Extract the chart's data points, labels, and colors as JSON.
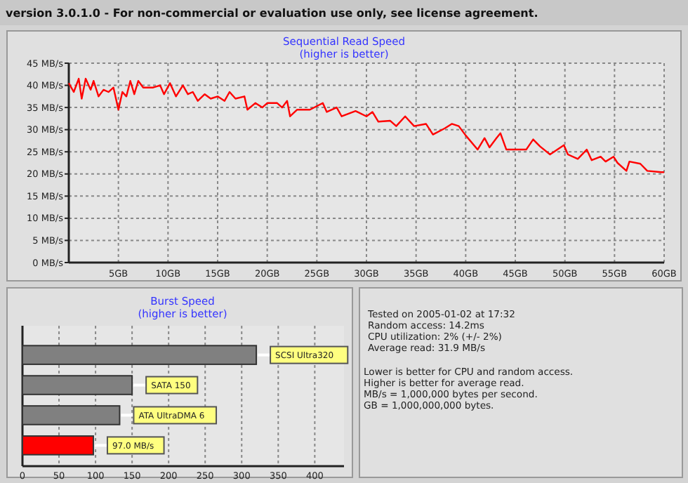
{
  "chart_data": [
    {
      "type": "other",
      "title": "version 3.0.1.0  - For non-commercial or evaluation use only, see license agreement."
    },
    {
      "type": "line",
      "title": "Sequential Read Speed",
      "subtitle": "(higher is better)",
      "xlim": [
        0,
        60
      ],
      "xticks": [
        {
          "value": 5,
          "label": "5GB"
        },
        {
          "value": 10,
          "label": "10GB"
        },
        {
          "value": 15,
          "label": "15GB"
        },
        {
          "value": 20,
          "label": "20GB"
        },
        {
          "value": 25,
          "label": "25GB"
        },
        {
          "value": 30,
          "label": "30GB"
        },
        {
          "value": 35,
          "label": "35GB"
        },
        {
          "value": 40,
          "label": "40GB"
        },
        {
          "value": 45,
          "label": "45GB"
        },
        {
          "value": 50,
          "label": "50GB"
        },
        {
          "value": 55,
          "label": "55GB"
        },
        {
          "value": 60,
          "label": "60GB"
        }
      ],
      "ylim": [
        0,
        45
      ],
      "yticks": [
        {
          "value": 0,
          "label": "0 MB/s"
        },
        {
          "value": 5,
          "label": "5 MB/s"
        },
        {
          "value": 10,
          "label": "10 MB/s"
        },
        {
          "value": 15,
          "label": "15 MB/s"
        },
        {
          "value": 20,
          "label": "20 MB/s"
        },
        {
          "value": 25,
          "label": "25 MB/s"
        },
        {
          "value": 30,
          "label": "30 MB/s"
        },
        {
          "value": 35,
          "label": "35 MB/s"
        },
        {
          "value": 40,
          "label": "40 MB/s"
        },
        {
          "value": 45,
          "label": "45 MB/s"
        }
      ],
      "grid": true,
      "line_style": "solid",
      "series": [
        {
          "color": "#ff0000",
          "x": [
            0,
            0.5,
            1,
            1.3,
            1.7,
            2.2,
            2.5,
            3,
            3.5,
            4,
            4.5,
            5,
            5.4,
            5.8,
            6.2,
            6.6,
            7,
            7.5,
            8.5,
            9.2,
            9.6,
            10.2,
            10.8,
            11.5,
            12,
            12.5,
            13,
            13.7,
            14.3,
            15,
            15.7,
            16.2,
            16.8,
            17.7,
            18,
            18.8,
            19.5,
            20,
            21,
            21.5,
            22,
            22.3,
            23,
            24.3,
            25.6,
            26,
            27,
            27.5,
            28.9,
            30,
            30.6,
            31.2,
            32.4,
            33,
            33.9,
            34.8,
            36,
            36.7,
            37.9,
            38.6,
            39.3,
            40,
            41.2,
            41.9,
            42.4,
            43.1,
            43.5,
            44.1,
            46.1,
            46.8,
            47.5,
            48.5,
            49.9,
            50.3,
            51.3,
            52.2,
            52.7,
            53.6,
            54.1,
            54.9,
            55.3,
            56.2,
            56.5,
            57.6,
            58.3,
            59.7,
            60
          ],
          "values": [
            40.5,
            38.5,
            41.5,
            37,
            41.5,
            39,
            41,
            37.5,
            39,
            38.5,
            39.5,
            34.5,
            38.5,
            37.5,
            41,
            38,
            41,
            39.5,
            39.5,
            40,
            38,
            40.5,
            37.5,
            40,
            38,
            38.5,
            36.5,
            38,
            37,
            37.5,
            36.5,
            38.5,
            37,
            37.5,
            34.5,
            36,
            35,
            36,
            36,
            35,
            36.5,
            33,
            34.5,
            34.5,
            36,
            34,
            35,
            33,
            34.2,
            33,
            34,
            31.8,
            32,
            30.8,
            33,
            30.8,
            31.3,
            28.9,
            30.3,
            31.3,
            30.8,
            28.7,
            25.5,
            28.1,
            26,
            28.1,
            29.2,
            25.5,
            25.5,
            27.8,
            26.2,
            24.4,
            26.5,
            24.4,
            23.4,
            25.5,
            23.1,
            23.9,
            22.8,
            23.9,
            22.5,
            20.7,
            22.8,
            22.3,
            20.7,
            20.4,
            20.4
          ]
        }
      ]
    },
    {
      "type": "bar",
      "orientation": "horizontal",
      "title": "Burst Speed",
      "subtitle": "(higher is better)",
      "categories": [
        "SCSI Ultra320",
        "SATA 150",
        "ATA UltraDMA 6",
        null
      ],
      "values": [
        320,
        150,
        133,
        97.0
      ],
      "colors": [
        "#808080",
        "#808080",
        "#808080",
        "#ff0000"
      ],
      "value_labels": [
        null,
        null,
        null,
        "97.0 MB/s"
      ],
      "xlim": [
        0,
        440
      ],
      "xticks": [
        0,
        50,
        100,
        150,
        200,
        250,
        300,
        350,
        400
      ],
      "grid": "x"
    },
    {
      "type": "other",
      "annotations": [
        "Tested on 2005-01-02 at 17:32",
        "Random access: 14.2ms",
        "CPU utilization: 2% (+/- 2%)",
        "Average read: 31.9 MB/s",
        "Lower is better for CPU and random access.",
        "Higher is better for average read.",
        "MB/s = 1,000,000 bytes per second.",
        "GB = 1,000,000,000 bytes."
      ]
    }
  ]
}
